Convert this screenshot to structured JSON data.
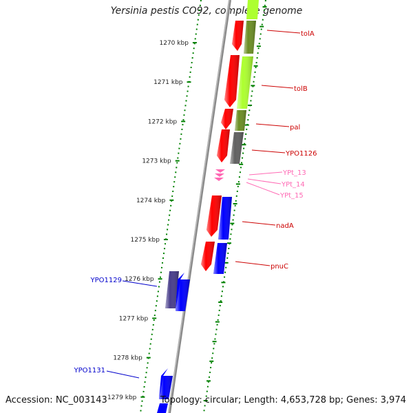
{
  "title": "Yersinia pestis CO92, complete genome",
  "accession": "Accession: NC_003143",
  "topology": "Topology: circular; Length: 4,653,728 bp; Genes: 3,974",
  "colors": {
    "red_gene": "#ff0000",
    "blue_gene": "#0000ff",
    "olive_gene": "#6b8e23",
    "lime_gene": "#adff2f",
    "gray_gene": "#606060",
    "purple_gene": "#483d8b",
    "pink_rna": "#ff69b4",
    "tick_green": "#008000",
    "label_red": "#cc0000",
    "label_blue": "#0000cc",
    "label_pink": "#ff69b4"
  },
  "scale": {
    "unit": "kbp",
    "ticks": [
      "1270 kbp",
      "1271 kbp",
      "1272 kbp",
      "1273 kbp",
      "1274 kbp",
      "1275 kbp",
      "1276 kbp",
      "1277 kbp",
      "1278 kbp",
      "1279 kbp"
    ]
  },
  "gene_labels": [
    {
      "name": "tolA",
      "color": "label_red"
    },
    {
      "name": "tolB",
      "color": "label_red"
    },
    {
      "name": "pal",
      "color": "label_red"
    },
    {
      "name": "YPO1126",
      "color": "label_red"
    },
    {
      "name": "YPt_13",
      "color": "label_pink"
    },
    {
      "name": "YPt_14",
      "color": "label_pink"
    },
    {
      "name": "YPt_15",
      "color": "label_pink"
    },
    {
      "name": "nadA",
      "color": "label_red"
    },
    {
      "name": "pnuC",
      "color": "label_red"
    },
    {
      "name": "YPO1129",
      "color": "label_blue"
    },
    {
      "name": "YPO1131",
      "color": "label_blue"
    }
  ]
}
